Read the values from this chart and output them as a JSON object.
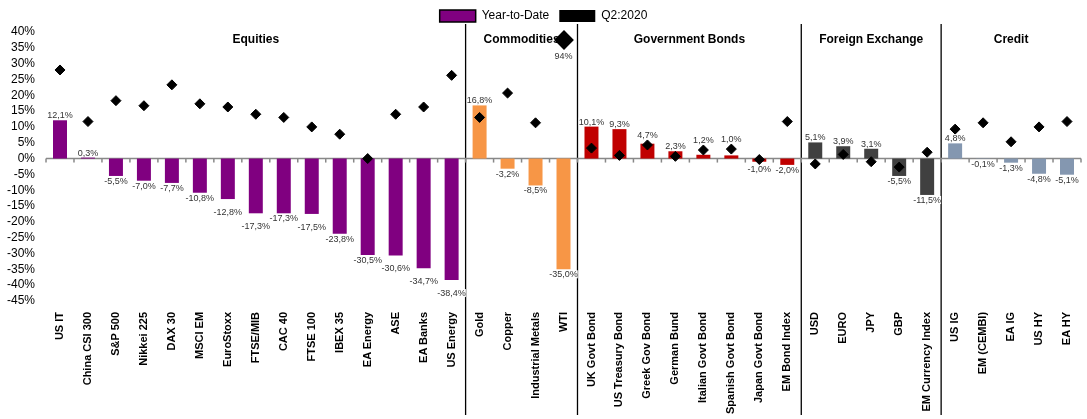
{
  "chart_data": {
    "type": "bar",
    "categories": [
      "US IT",
      "China CSI 300",
      "S&P 500",
      "Nikkei 225",
      "DAX 30",
      "MSCI EM",
      "EuroStoxx",
      "FTSE/MIB",
      "CAC 40",
      "FTSE 100",
      "IBEX 35",
      "EA Energy",
      "ASE",
      "EA Banks",
      "US Energy",
      "Gold",
      "Copper",
      "Industrial Metals",
      "WTI",
      "UK Govt Bond",
      "US Treasury Bond",
      "Greek Gov Bond",
      "German Bund",
      "Italian Govt Bond",
      "Spanish Govt Bond",
      "Japan Govt Bond",
      "EM Bond Index",
      "USD",
      "EURO",
      "JPY",
      "GBP",
      "EM Currency Index",
      "US IG",
      "EM (CEMBI)",
      "EA IG",
      "US HY",
      "EA HY"
    ],
    "series": [
      {
        "name": "Year-to-Date",
        "colors": [
          "#800080",
          "#800080",
          "#800080",
          "#800080",
          "#800080",
          "#800080",
          "#800080",
          "#800080",
          "#800080",
          "#800080",
          "#800080",
          "#800080",
          "#800080",
          "#800080",
          "#800080",
          "#f79646",
          "#f79646",
          "#f79646",
          "#f79646",
          "#c00000",
          "#c00000",
          "#c00000",
          "#c00000",
          "#c00000",
          "#c00000",
          "#c00000",
          "#c00000",
          "#404040",
          "#404040",
          "#404040",
          "#404040",
          "#404040",
          "#8497b0",
          "#8497b0",
          "#8497b0",
          "#8497b0",
          "#8497b0"
        ],
        "values": [
          12.1,
          0.3,
          -5.5,
          -7.0,
          -7.7,
          -10.8,
          -12.8,
          -17.3,
          -17.3,
          -17.5,
          -23.8,
          -30.5,
          -30.6,
          -34.7,
          -38.4,
          16.8,
          -3.2,
          -8.5,
          -35.0,
          10.1,
          9.3,
          4.7,
          2.3,
          1.2,
          1.0,
          -1.0,
          -2.0,
          5.1,
          3.9,
          3.1,
          -5.5,
          -11.5,
          4.8,
          -0.1,
          -1.3,
          -4.8,
          -5.1
        ],
        "value_labels": [
          "12,1%",
          "0,3%",
          "-5,5%",
          "-7,0%",
          "-7,7%",
          "-10,8%",
          "-12,8%",
          "-17,3%",
          "-17,3%",
          "-17,5%",
          "-23,8%",
          "-30,5%",
          "-30,6%",
          "-34,7%",
          "-38,4%",
          "16,8%",
          "-3,2%",
          "-8,5%",
          "-35,0%",
          "10,1%",
          "9,3%",
          "4,7%",
          "2,3%",
          "1,2%",
          "1,0%",
          "-1,0%",
          "-2,0%",
          "5,1%",
          "3,9%",
          "3,1%",
          "-5,5%",
          "-11,5%",
          "4,8%",
          "-0,1%",
          "-1,3%",
          "-4,8%",
          "-5,1%"
        ]
      },
      {
        "name": "Q2:2020",
        "type": "scatter",
        "color": "#000000",
        "marker": "diamond",
        "values": [
          28,
          11.7,
          18.3,
          16.7,
          23.3,
          17.3,
          16.3,
          14,
          13,
          10,
          7.7,
          0,
          14,
          16.3,
          26.3,
          13,
          20.7,
          11.3,
          null,
          3.3,
          1,
          4.3,
          0.7,
          2.7,
          3,
          -0.3,
          11.7,
          -1.7,
          1.3,
          -1,
          -2.7,
          2,
          9.3,
          11.3,
          5.3,
          10,
          11.7
        ]
      }
    ],
    "ylim": [
      -45,
      40
    ],
    "yticks": [
      {
        "value": -45,
        "label": "-45%"
      },
      {
        "value": -40,
        "label": "-40%"
      },
      {
        "value": -35,
        "label": "-35%"
      },
      {
        "value": -30,
        "label": "-30%"
      },
      {
        "value": -25,
        "label": "-25%"
      },
      {
        "value": -20,
        "label": "-20%"
      },
      {
        "value": -15,
        "label": "-15%"
      },
      {
        "value": -10,
        "label": "-10%"
      },
      {
        "value": -5,
        "label": "-5%"
      },
      {
        "value": 0,
        "label": "0%"
      },
      {
        "value": 5,
        "label": "5%"
      },
      {
        "value": 10,
        "label": "10%"
      },
      {
        "value": 15,
        "label": "15%"
      },
      {
        "value": 20,
        "label": "20%"
      },
      {
        "value": 25,
        "label": "25%"
      },
      {
        "value": 30,
        "label": "30%"
      },
      {
        "value": 35,
        "label": "35%"
      },
      {
        "value": 40,
        "label": "40%"
      }
    ],
    "annotations": [
      "Equities",
      "Commodities",
      "Government Bonds",
      "Foreign Exchange",
      "Credit",
      "94%"
    ],
    "legend": "top",
    "grid": false
  }
}
